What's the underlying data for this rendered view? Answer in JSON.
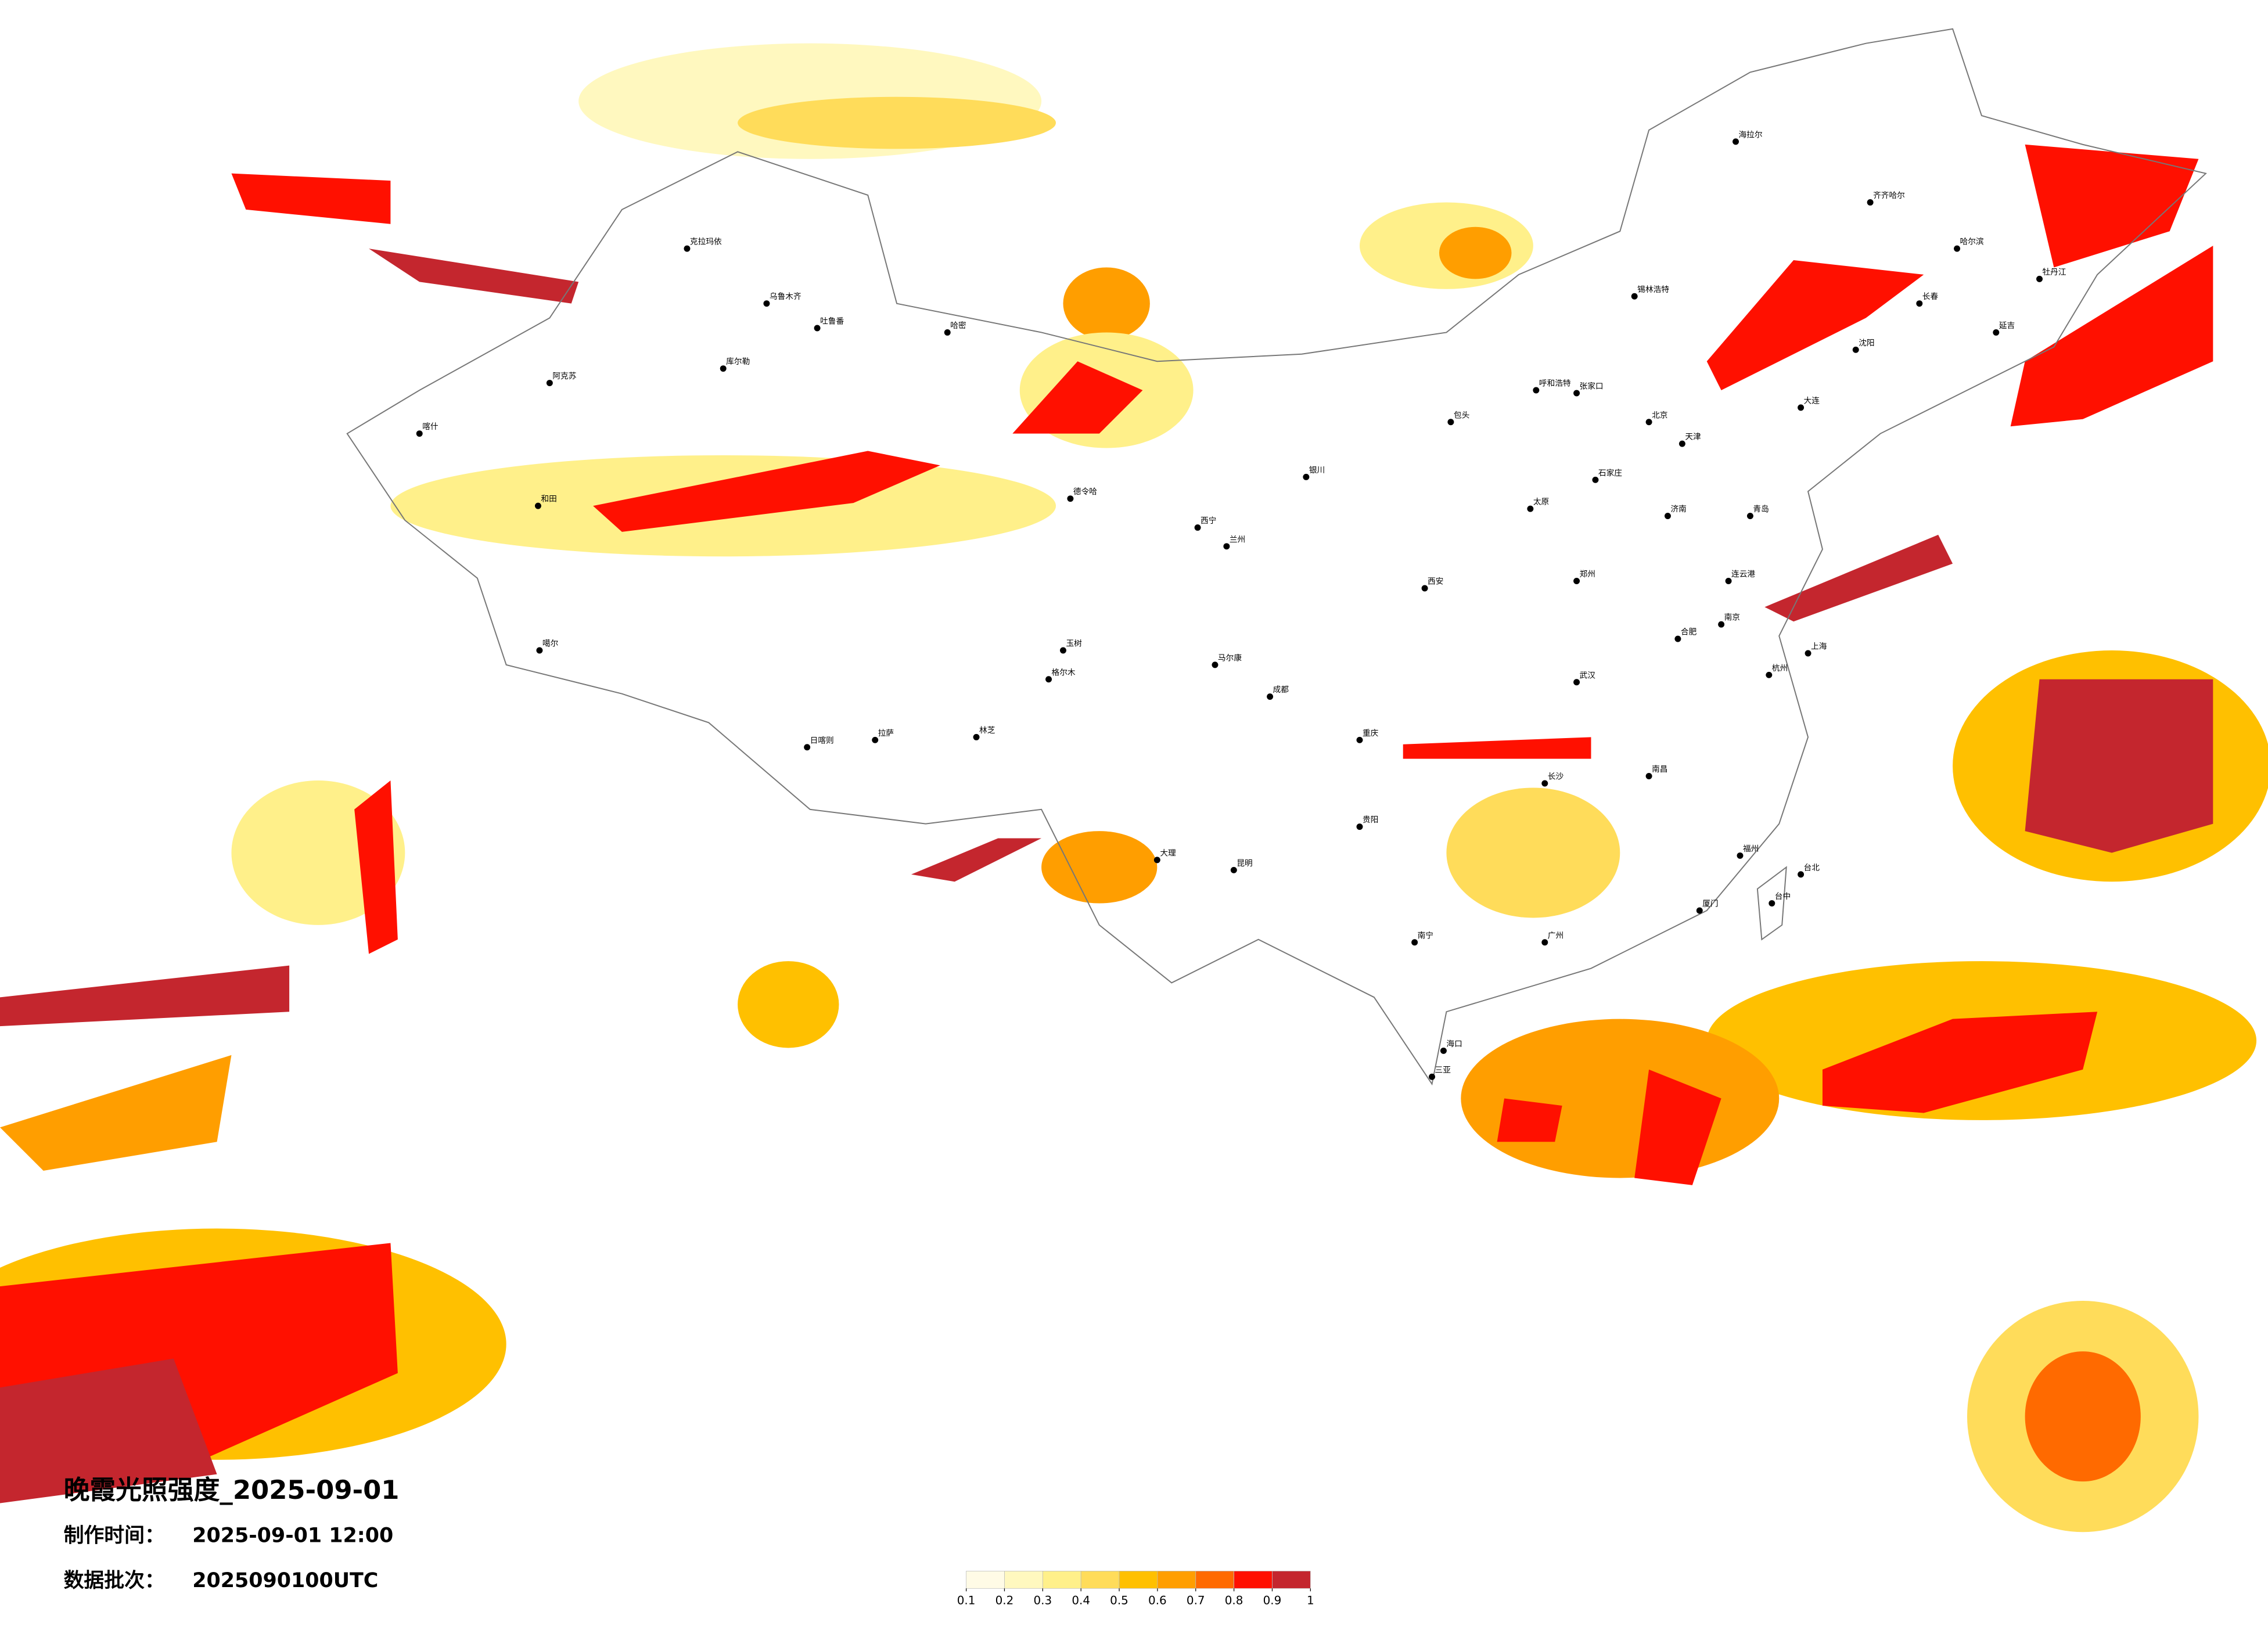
{
  "title": "晚霞光照强度_2025-09-01",
  "made_time": {
    "label": "制作时间：",
    "value": "2025-09-01 12:00"
  },
  "batch": {
    "label": "数据批次：",
    "value": "2025090100UTC"
  },
  "colorbar": {
    "ticks": [
      0.1,
      0.2,
      0.3,
      0.4,
      0.5,
      0.6,
      0.7,
      0.8,
      0.9,
      1
    ],
    "colors": [
      "#fffbe6",
      "#fff8bf",
      "#fff08a",
      "#ffdc5a",
      "#ffc000",
      "#ff9e00",
      "#ff6a00",
      "#ff1000",
      "#c4262e"
    ]
  },
  "cities": [
    "克拉玛依",
    "乌鲁木齐",
    "吐鲁番",
    "哈密",
    "库尔勒",
    "阿克苏",
    "和田",
    "喀什",
    "噶尔",
    "日喀则",
    "拉萨",
    "林芝",
    "格尔木",
    "德令哈",
    "西宁",
    "兰州",
    "银川",
    "呼和浩特",
    "包头",
    "北京",
    "天津",
    "石家庄",
    "太原",
    "济南",
    "郑州",
    "西安",
    "成都",
    "重庆",
    "贵阳",
    "昆明",
    "大理",
    "南宁",
    "广州",
    "长沙",
    "武汉",
    "南京",
    "上海",
    "杭州",
    "福州",
    "台北",
    "台中",
    "南昌",
    "合肥",
    "哈尔滨",
    "长春",
    "沈阳",
    "齐齐哈尔",
    "海拉尔",
    "牡丹江",
    "延吉",
    "大连",
    "青岛",
    "连云港",
    "厦门",
    "三亚",
    "海口",
    "锡林浩特",
    "张家口",
    "玉树",
    "马尔康"
  ]
}
